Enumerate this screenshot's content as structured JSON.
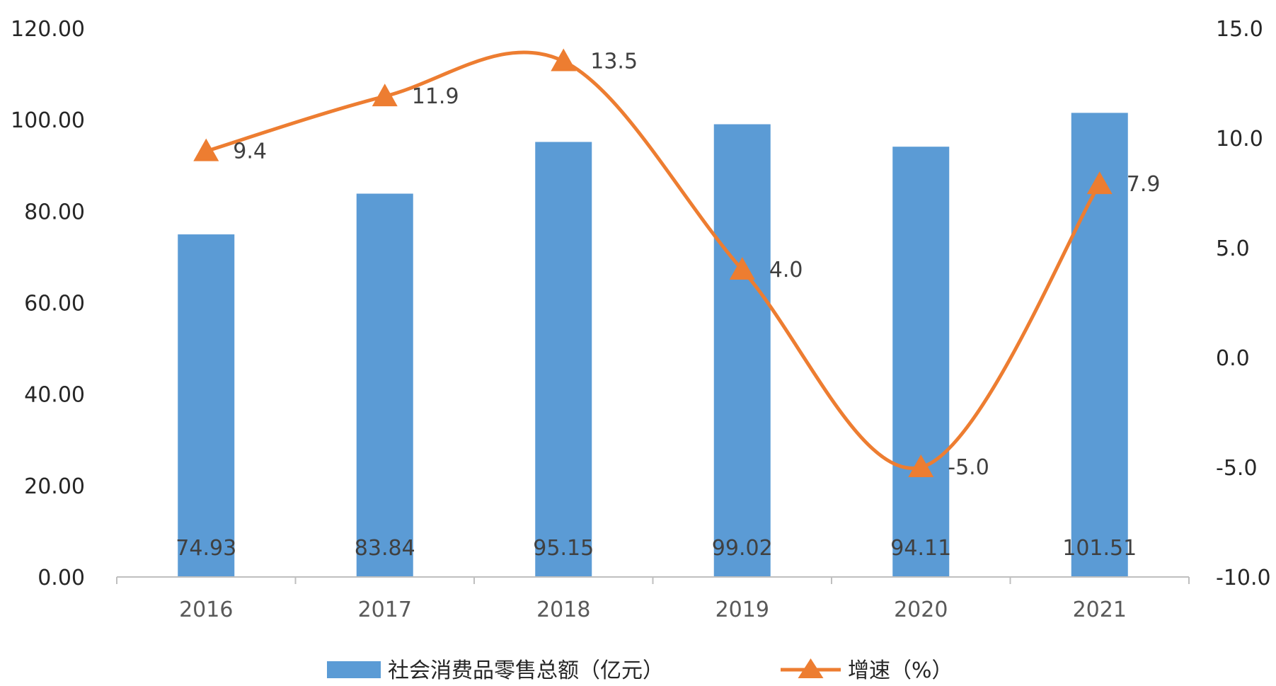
{
  "chart_data": {
    "type": "bar",
    "categories": [
      "2016",
      "2017",
      "2018",
      "2019",
      "2020",
      "2021"
    ],
    "series": [
      {
        "name": "社会消费品零售总额（亿元）",
        "type": "bar",
        "axis": "left",
        "values": [
          74.93,
          83.84,
          95.15,
          99.02,
          94.11,
          101.51
        ],
        "labels": [
          "74.93",
          "83.84",
          "95.15",
          "99.02",
          "94.11",
          "101.51"
        ],
        "color": "#5B9BD5"
      },
      {
        "name": "增速（%）",
        "type": "line",
        "axis": "right",
        "smooth": true,
        "marker": "triangle",
        "values": [
          9.4,
          11.9,
          13.5,
          4.0,
          -5.0,
          7.9
        ],
        "labels": [
          "9.4",
          "11.9",
          "13.5",
          "4.0",
          "-5.0",
          "7.9"
        ],
        "color": "#ED7D31"
      }
    ],
    "y_left": {
      "min": 0,
      "max": 120,
      "step": 20,
      "ticks": [
        "0.00",
        "20.00",
        "40.00",
        "60.00",
        "80.00",
        "100.00",
        "120.00"
      ]
    },
    "y_right": {
      "min": -10,
      "max": 15,
      "step": 5,
      "ticks": [
        "-10.0",
        "-5.0",
        "0.0",
        "5.0",
        "10.0",
        "15.0"
      ]
    },
    "grid": false,
    "legend_position": "bottom"
  }
}
